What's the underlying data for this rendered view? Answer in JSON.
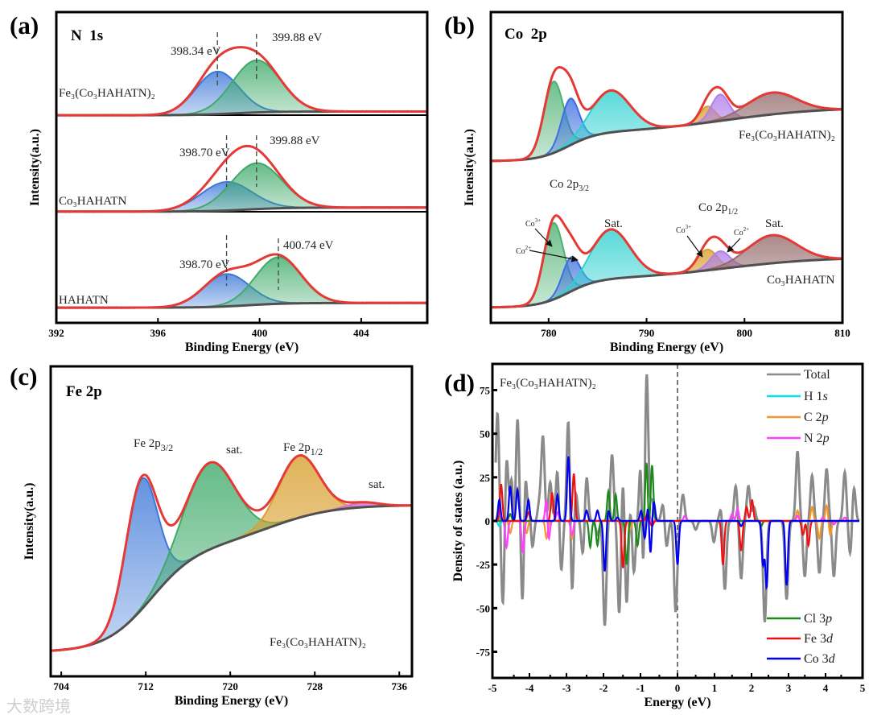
{
  "panels": {
    "a": {
      "letter": "(a)",
      "title": "N  1s",
      "xlabel": "Binding Energy (eV)",
      "ylabel": "Intensity(a.u.)",
      "xlim": [
        392,
        406.6
      ],
      "xticks": [
        392,
        396,
        400,
        404
      ],
      "spectra": [
        {
          "name": "Fe₃(Co₃HAHATN)₂",
          "baseline": {
            "base": 66.8,
            "steps": [
              {
                "c": 399,
                "w": 0.8,
                "h": 1.2
              }
            ]
          },
          "peaks": [
            {
              "center": 398.34,
              "height": 13.7,
              "sigma": 0.85,
              "color": "#3d78d8"
            },
            {
              "center": 399.88,
              "height": 16.8,
              "sigma": 0.95,
              "color": "#3faa6a"
            }
          ]
        },
        {
          "name": "Co₃HAHATN",
          "baseline": {
            "base": 35.8,
            "steps": [
              {
                "c": 399.5,
                "w": 0.8,
                "h": 1.3
              }
            ]
          },
          "peaks": [
            {
              "center": 398.7,
              "height": 9.2,
              "sigma": 1.0,
              "color": "#3d78d8"
            },
            {
              "center": 399.88,
              "height": 14.8,
              "sigma": 1.0,
              "color": "#3faa6a"
            }
          ]
        },
        {
          "name": "HAHATN",
          "baseline": {
            "base": 4.9,
            "steps": [
              {
                "c": 399.5,
                "w": 0.8,
                "h": 1.5
              }
            ]
          },
          "peaks": [
            {
              "center": 398.7,
              "height": 10.4,
              "sigma": 0.9,
              "color": "#3d78d8"
            },
            {
              "center": 400.74,
              "height": 15.0,
              "sigma": 0.9,
              "color": "#3faa6a"
            }
          ]
        }
      ],
      "annotations": [
        "398.34 eV",
        "399.88 eV",
        "398.70 eV",
        "399.88 eV",
        "398.70 eV",
        "400.74 eV"
      ],
      "marked_energies": [
        398.34,
        399.88,
        398.7,
        399.88,
        398.7,
        400.74
      ]
    },
    "b": {
      "letter": "(b)",
      "title": "Co  2p",
      "xlabel": "Binding Energy (eV)",
      "ylabel": "Intensity(a.u.)",
      "xlim": [
        774.1,
        810
      ],
      "xticks": [
        780,
        790,
        800,
        810
      ],
      "spectra": [
        {
          "name": "Fe₃(Co₃HAHATN)₂",
          "baseline": {
            "base": 52,
            "steps": [
              {
                "c": 782,
                "w": 1.5,
                "h": 9
              },
              {
                "c": 798,
                "w": 5,
                "h": 8.4
              }
            ]
          },
          "peaks": [
            {
              "center": 780.5,
              "height": 23,
              "sigma": 1.0,
              "color": "#4cb070"
            },
            {
              "center": 782.2,
              "height": 15,
              "sigma": 0.9,
              "color": "#3d6fe0"
            },
            {
              "center": 786.3,
              "height": 13.5,
              "sigma": 2.0,
              "color": "#2fd0d0"
            },
            {
              "center": 796.2,
              "height": 5.2,
              "sigma": 0.8,
              "color": "#d9a030"
            },
            {
              "center": 797.5,
              "height": 8.5,
              "sigma": 0.9,
              "color": "#b080e8"
            },
            {
              "center": 802.8,
              "height": 7,
              "sigma": 2.5,
              "color": "#966d6d"
            }
          ]
        },
        {
          "name": "Co₃HAHATN",
          "baseline": {
            "base": 4.9,
            "steps": [
              {
                "c": 782,
                "w": 1.5,
                "h": 9
              },
              {
                "c": 798,
                "w": 5,
                "h": 7.3
              }
            ]
          },
          "peaks": [
            {
              "center": 780.5,
              "height": 24.6,
              "sigma": 1.0,
              "color": "#4cb070"
            },
            {
              "center": 782.3,
              "height": 11,
              "sigma": 0.9,
              "color": "#3d6fe0"
            },
            {
              "center": 786.3,
              "height": 16,
              "sigma": 2.0,
              "color": "#2fd0d0"
            },
            {
              "center": 796.2,
              "height": 6.7,
              "sigma": 1.0,
              "color": "#d9a030"
            },
            {
              "center": 797.5,
              "height": 5.7,
              "sigma": 1.0,
              "color": "#b080e8"
            },
            {
              "center": 802.8,
              "height": 9,
              "sigma": 2.5,
              "color": "#966d6d"
            }
          ]
        }
      ],
      "labels": {
        "p32_main": "Co 2p",
        "p32_sub": "3/2",
        "p12_main": "Co 2p",
        "p12_sub": "1/2",
        "sat1": "Sat.",
        "sat2": "Sat.",
        "co3_left": "Co",
        "co3_left_sup": "3+",
        "co2_left": "Co",
        "co2_left_sup": "2+",
        "co3_right": "Co",
        "co3_right_sup": "3+",
        "co2_right": "Co",
        "co2_right_sup": "2+"
      }
    },
    "c": {
      "letter": "(c)",
      "title": "Fe 2p",
      "xlabel": "Binding Energy (eV)",
      "ylabel": "Intensity(a.u.)",
      "xlim": [
        703.0,
        737.2
      ],
      "xticks": [
        704,
        712,
        720,
        728,
        736
      ],
      "spectra": [
        {
          "name": "Fe₃(Co₃HAHATN)₂",
          "baseline": {
            "base": 7.8,
            "steps": [
              {
                "c": 712.5,
                "w": 2.2,
                "h": 34
              },
              {
                "c": 724,
                "w": 3,
                "h": 13.5
              }
            ]
          },
          "peaks": [
            {
              "center": 711.6,
              "height": 42,
              "sigma": 1.5,
              "color": "#3d78d8"
            },
            {
              "center": 718.0,
              "height": 28,
              "sigma": 2.4,
              "color": "#3faa6a"
            },
            {
              "center": 726.5,
              "height": 20,
              "sigma": 1.9,
              "color": "#d9a030"
            },
            {
              "center": 732.5,
              "height": 1.5,
              "sigma": 1.5,
              "color": "#d070d0"
            }
          ]
        }
      ],
      "labels": {
        "p32_main": "Fe 2p",
        "p32_sub": "3/2",
        "p12_main": "Fe 2p",
        "p12_sub": "1/2",
        "sat1": "sat.",
        "sat2": "sat."
      }
    }
  },
  "chart_data": {
    "type": "line",
    "letter": "(d)",
    "title": "Fe₃(Co₃HAHATN)₂",
    "xlabel": "Energy (eV)",
    "ylabel": "Density of states (a.u.)",
    "xlim": [
      -5,
      5
    ],
    "ylim": [
      -90,
      90
    ],
    "xticks": [
      -5,
      -4,
      -3,
      -2,
      -1,
      0,
      1,
      2,
      3,
      4,
      5
    ],
    "yticks": [
      -75,
      -50,
      -25,
      0,
      25,
      50,
      75
    ],
    "fermi_level": 0,
    "legend_placement": "right",
    "series": [
      {
        "name": "Total",
        "color": "#8a8a8a",
        "spikes": [
          [
            -4.95,
            62
          ],
          [
            -4.7,
            38
          ],
          [
            -4.55,
            32
          ],
          [
            -4.4,
            60
          ],
          [
            -4.2,
            45
          ],
          [
            -4.05,
            12
          ],
          [
            -3.8,
            10
          ],
          [
            -3.7,
            48
          ],
          [
            -3.5,
            72
          ],
          [
            -3.3,
            30
          ],
          [
            -3.0,
            60
          ],
          [
            -2.8,
            18
          ],
          [
            -2.5,
            26
          ],
          [
            -2.2,
            32
          ],
          [
            -2.0,
            10
          ],
          [
            -1.8,
            38
          ],
          [
            -1.5,
            28
          ],
          [
            -1.3,
            10
          ],
          [
            -1.0,
            50
          ],
          [
            -0.85,
            88
          ],
          [
            -0.7,
            72
          ],
          [
            -0.4,
            10
          ],
          [
            0.15,
            15
          ],
          [
            1.2,
            8
          ],
          [
            1.6,
            20
          ],
          [
            1.95,
            20
          ],
          [
            2.1,
            8
          ],
          [
            3.3,
            40
          ],
          [
            3.7,
            26
          ],
          [
            4.1,
            30
          ],
          [
            4.6,
            28
          ],
          [
            4.85,
            20
          ],
          [
            -4.8,
            -50
          ],
          [
            -4.5,
            -20
          ],
          [
            -4.25,
            -65
          ],
          [
            -4.0,
            -20
          ],
          [
            -3.5,
            -50
          ],
          [
            -3.2,
            -30
          ],
          [
            -2.9,
            -45
          ],
          [
            -2.6,
            -20
          ],
          [
            -2.2,
            -40
          ],
          [
            -2.0,
            -70
          ],
          [
            -1.6,
            -55
          ],
          [
            -1.4,
            -50
          ],
          [
            -1.2,
            -30
          ],
          [
            -0.95,
            -55
          ],
          [
            -0.7,
            -60
          ],
          [
            -0.3,
            -15
          ],
          [
            -0.05,
            -52
          ],
          [
            0.5,
            -5
          ],
          [
            1.0,
            -12
          ],
          [
            1.3,
            -40
          ],
          [
            1.75,
            -33
          ],
          [
            2.4,
            -58
          ],
          [
            3.0,
            -45
          ],
          [
            3.5,
            -32
          ],
          [
            3.9,
            -30
          ],
          [
            4.3,
            -32
          ],
          [
            4.75,
            -20
          ]
        ]
      },
      {
        "name": "H 1s",
        "color": "#00e5ee",
        "spikes": [
          [
            -4.9,
            -3
          ]
        ]
      },
      {
        "name": "C 2p",
        "color": "#f5962a",
        "spikes": [
          [
            -0.9,
            4
          ],
          [
            3.3,
            18
          ],
          [
            3.7,
            8
          ],
          [
            4.1,
            9
          ],
          [
            -4.6,
            -7
          ],
          [
            -4.15,
            -7
          ],
          [
            -3.6,
            -10
          ],
          [
            -2.9,
            -10
          ],
          [
            -1.3,
            -5
          ],
          [
            3.3,
            -12
          ],
          [
            3.9,
            -10
          ],
          [
            4.2,
            -8
          ]
        ]
      },
      {
        "name": "N 2p",
        "color": "#ff40ff",
        "spikes": [
          [
            -4.9,
            8
          ],
          [
            -3.6,
            15
          ],
          [
            -3.3,
            5
          ],
          [
            -1.0,
            5
          ],
          [
            -0.8,
            6
          ],
          [
            0.2,
            3
          ],
          [
            1.5,
            4
          ],
          [
            1.65,
            7
          ],
          [
            3.3,
            3
          ],
          [
            4.0,
            2
          ],
          [
            4.6,
            2
          ],
          [
            -4.7,
            -15
          ],
          [
            -4.25,
            -18
          ],
          [
            -3.55,
            -14
          ],
          [
            -2.9,
            -8
          ],
          [
            4.3,
            -2
          ]
        ]
      },
      {
        "name": "Cl 3p",
        "color": "#1a8a1a",
        "spikes": [
          [
            -4.6,
            4
          ],
          [
            -2.2,
            8
          ],
          [
            -1.9,
            17
          ],
          [
            -1.7,
            15
          ],
          [
            -0.85,
            36
          ],
          [
            -0.7,
            32
          ],
          [
            -2.4,
            -15
          ],
          [
            -2.2,
            -22
          ],
          [
            -1.4,
            -25
          ],
          [
            -1.1,
            -14
          ],
          [
            -0.8,
            -8
          ],
          [
            2.3,
            -3
          ]
        ]
      },
      {
        "name": "Fe 3d",
        "color": "#ee1111",
        "spikes": [
          [
            -4.85,
            21
          ],
          [
            -4.1,
            5
          ],
          [
            -3.45,
            16
          ],
          [
            -2.85,
            27
          ],
          [
            -0.85,
            3
          ],
          [
            1.9,
            8
          ],
          [
            2.05,
            12
          ],
          [
            -1.5,
            -27
          ],
          [
            -0.7,
            -3
          ],
          [
            1.25,
            -25
          ],
          [
            1.75,
            -17
          ],
          [
            3.6,
            -14
          ],
          [
            3.45,
            -8
          ]
        ]
      },
      {
        "name": "Co 3d",
        "color": "#0000ee",
        "spikes": [
          [
            -4.9,
            12
          ],
          [
            -4.6,
            20
          ],
          [
            -4.4,
            18
          ],
          [
            -4.1,
            12
          ],
          [
            -3.3,
            15
          ],
          [
            -3.0,
            37
          ],
          [
            -2.5,
            6
          ],
          [
            -2.2,
            6
          ],
          [
            -1.9,
            6
          ],
          [
            -1.65,
            2
          ],
          [
            -1.0,
            6
          ],
          [
            -0.8,
            12
          ],
          [
            -0.65,
            11
          ],
          [
            -2.0,
            -29
          ],
          [
            -0.75,
            -22
          ],
          [
            -0.9,
            -10
          ],
          [
            0.0,
            -25
          ],
          [
            1.75,
            -3
          ],
          [
            2.35,
            -25
          ],
          [
            2.45,
            -38
          ],
          [
            3.0,
            -37
          ]
        ]
      }
    ],
    "legend": [
      {
        "main": "Total",
        "ital": ""
      },
      {
        "main": "H 1",
        "ital": "s"
      },
      {
        "main": "C 2",
        "ital": "p"
      },
      {
        "main": "N 2",
        "ital": "p"
      },
      {
        "main": "Cl 3",
        "ital": "p"
      },
      {
        "main": "Fe 3",
        "ital": "d"
      },
      {
        "main": "Co 3",
        "ital": "d"
      }
    ]
  },
  "watermark": "大数跨境"
}
